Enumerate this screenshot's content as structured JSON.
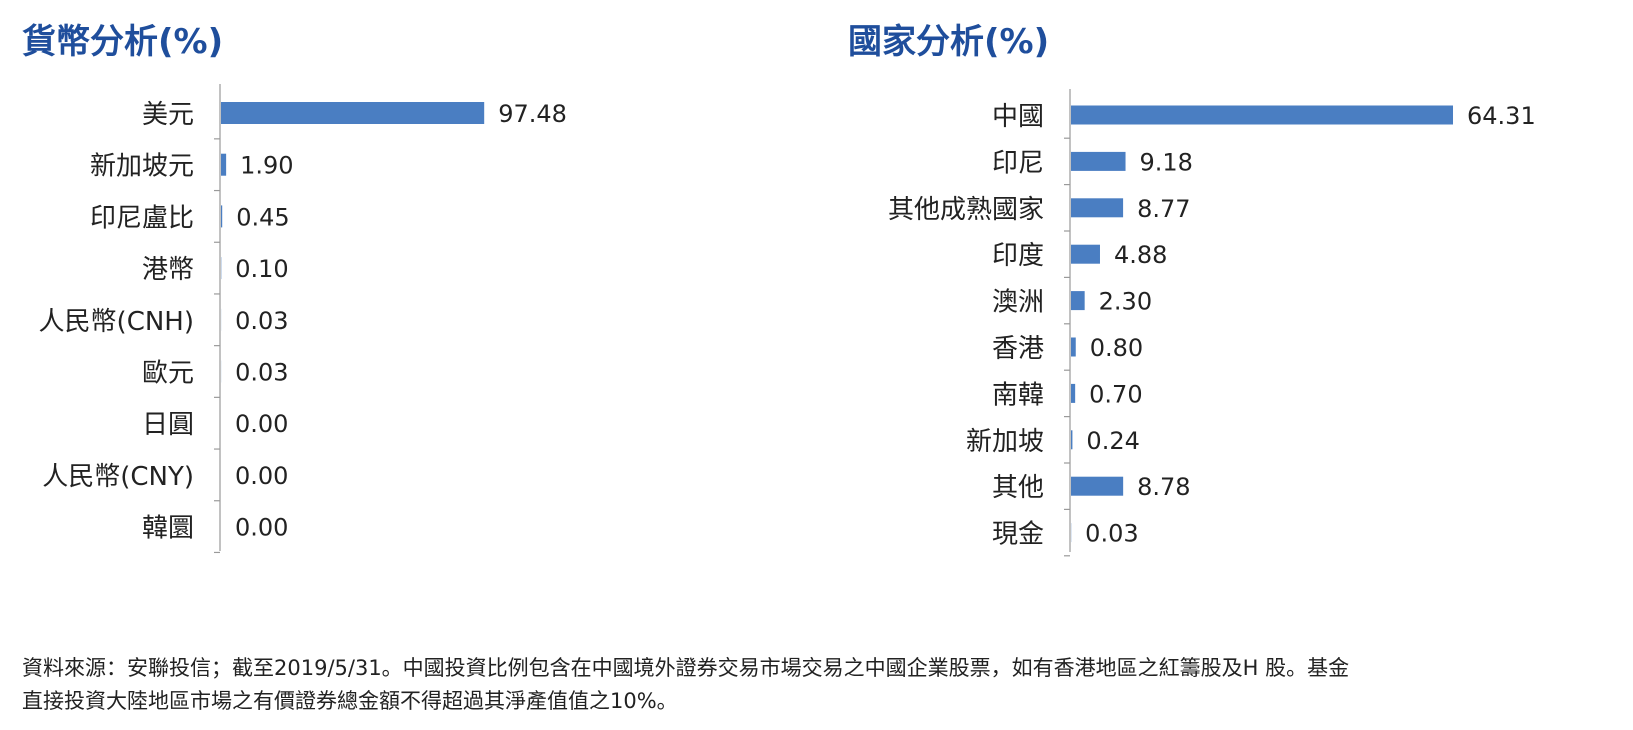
{
  "colors": {
    "title": "#1f4e9c",
    "bar": "#4a7ec2"
  },
  "chart_data": [
    {
      "type": "bar",
      "orientation": "horizontal",
      "title": "貨幣分析(%)",
      "categories": [
        "美元",
        "新加坡元",
        "印尼盧比",
        "港幣",
        "人民幣(CNH)",
        "歐元",
        "日圓",
        "人民幣(CNY)",
        "韓圜"
      ],
      "values": [
        97.48,
        1.9,
        0.45,
        0.1,
        0.03,
        0.03,
        0.0,
        0.0,
        0.0
      ],
      "labels": [
        "97.48",
        "1.90",
        "0.45",
        "0.10",
        "0.03",
        "0.03",
        "0.00",
        "0.00",
        "0.00"
      ]
    },
    {
      "type": "bar",
      "orientation": "horizontal",
      "title": "國家分析(%)",
      "categories": [
        "中國",
        "印尼",
        "其他成熟國家",
        "印度",
        "澳洲",
        "香港",
        "南韓",
        "新加坡",
        "其他",
        "現金"
      ],
      "values": [
        64.31,
        9.18,
        8.77,
        4.88,
        2.3,
        0.8,
        0.7,
        0.24,
        8.78,
        0.03
      ],
      "labels": [
        "64.31",
        "9.18",
        "8.77",
        "4.88",
        "2.30",
        "0.80",
        "0.70",
        "0.24",
        "8.78",
        "0.03"
      ]
    }
  ],
  "footnote": {
    "line1": "資料來源：安聯投信；截至2019/5/31。中國投資比例包含在中國境外證券交易市場交易之中國企業股票，如有香港地區之紅籌股及H 股。基金",
    "line2": "直接投資大陸地區市場之有價證券總金額不得超過其淨產值值之10%。"
  }
}
